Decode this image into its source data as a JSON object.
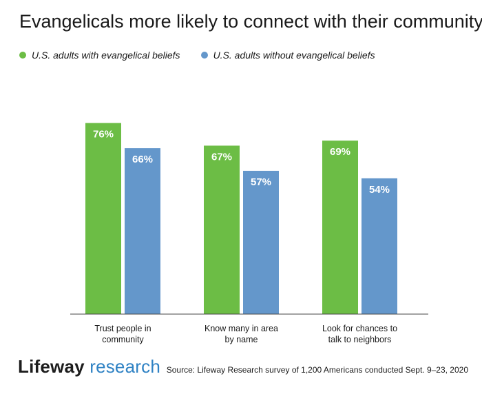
{
  "colors": {
    "series1": "#6cbd45",
    "series2": "#6497cb",
    "axis": "#444444"
  },
  "logo": {
    "part1": "Lifeway",
    "part2": "research"
  },
  "source": "Source: Lifeway Research survey of 1,200 Americans conducted Sept. 9–23, 2020",
  "chart_data": {
    "type": "bar",
    "title": "Evangelicals more likely to connect with their community",
    "categories": [
      [
        "Trust people in",
        "community"
      ],
      [
        "Know many in area",
        "by name"
      ],
      [
        "Look for chances to",
        "talk to neighbors"
      ]
    ],
    "series": [
      {
        "name": "U.S. adults with evangelical beliefs",
        "values": [
          76,
          67,
          69
        ]
      },
      {
        "name": "U.S. adults without evangelical beliefs",
        "values": [
          66,
          57,
          54
        ]
      }
    ],
    "value_suffix": "%",
    "ylim": [
      0,
      100
    ],
    "grid": false,
    "legend": "top-left"
  }
}
